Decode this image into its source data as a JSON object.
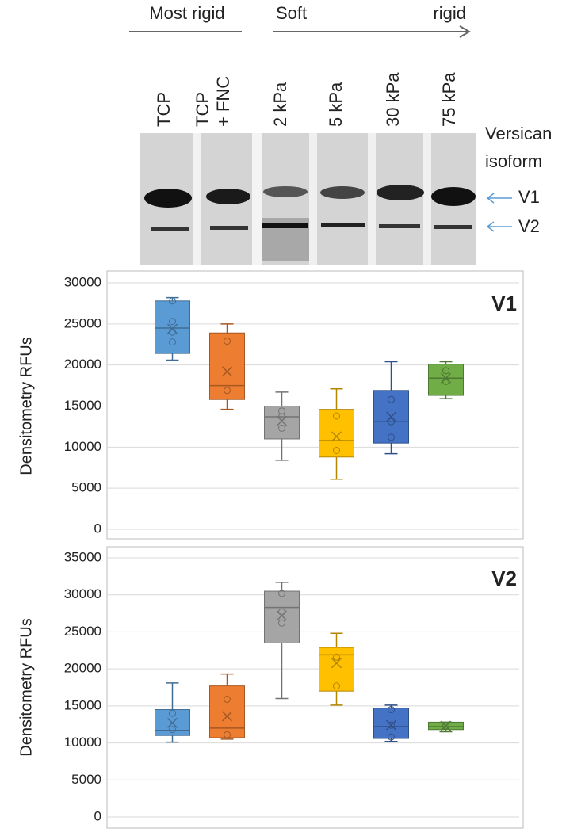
{
  "blot": {
    "header_left": "Most rigid",
    "header_soft": "Soft",
    "header_right": "rigid",
    "lanes": [
      [
        "TCP"
      ],
      [
        "TCP",
        "+ FNC"
      ],
      [
        "2 kPa"
      ],
      [
        "5 kPa"
      ],
      [
        "30 kPa"
      ],
      [
        "75 kPa"
      ]
    ],
    "isoform_label": [
      "Versican",
      "isoform"
    ],
    "bands": [
      "V1",
      "V2"
    ]
  },
  "chart_data": [
    {
      "type": "box",
      "label": "V1",
      "ylabel": "Densitometry RFUs",
      "ylim": [
        0,
        30000
      ],
      "yticks": [
        0,
        5000,
        10000,
        15000,
        20000,
        25000,
        30000
      ],
      "grid": true,
      "boxes": [
        {
          "color": "#5b9bd5",
          "min": 20600,
          "q1": 21400,
          "median": 24500,
          "q3": 27800,
          "max": 28200,
          "mean": 24400,
          "points": [
            27800,
            25300,
            24000,
            22800
          ]
        },
        {
          "color": "#ed7d31",
          "min": 14600,
          "q1": 15800,
          "median": 17500,
          "q3": 23900,
          "max": 25000,
          "mean": 19200,
          "points": [
            22900,
            16900
          ]
        },
        {
          "color": "#a5a5a5",
          "min": 8400,
          "q1": 11000,
          "median": 13700,
          "q3": 15000,
          "max": 16700,
          "mean": 13200,
          "points": [
            14400,
            13700,
            12300
          ]
        },
        {
          "color": "#ffc000",
          "min": 6100,
          "q1": 8800,
          "median": 10800,
          "q3": 14600,
          "max": 17100,
          "mean": 11300,
          "points": [
            13800,
            9600
          ]
        },
        {
          "color": "#4472c4",
          "min": 9200,
          "q1": 10500,
          "median": 13100,
          "q3": 16900,
          "max": 20400,
          "mean": 13700,
          "points": [
            15800,
            13100,
            11200
          ]
        },
        {
          "color": "#70ad47",
          "min": 15900,
          "q1": 16300,
          "median": 18400,
          "q3": 20100,
          "max": 20400,
          "mean": 18400,
          "points": [
            19300,
            18000
          ]
        }
      ]
    },
    {
      "type": "box",
      "label": "V2",
      "ylabel": "Densitometry RFUs",
      "ylim": [
        0,
        35000
      ],
      "yticks": [
        0,
        5000,
        10000,
        15000,
        20000,
        25000,
        30000,
        35000
      ],
      "grid": true,
      "boxes": [
        {
          "color": "#5b9bd5",
          "min": 10100,
          "q1": 11000,
          "median": 11700,
          "q3": 14500,
          "max": 18100,
          "mean": 12700,
          "points": [
            14000,
            11800
          ]
        },
        {
          "color": "#ed7d31",
          "min": 10500,
          "q1": 10700,
          "median": 12000,
          "q3": 17700,
          "max": 19300,
          "mean": 13600,
          "points": [
            15900,
            11100
          ]
        },
        {
          "color": "#a5a5a5",
          "min": 16000,
          "q1": 23500,
          "median": 28300,
          "q3": 30500,
          "max": 31700,
          "mean": 27200,
          "points": [
            30200,
            27700,
            26200
          ]
        },
        {
          "color": "#ffc000",
          "min": 15100,
          "q1": 17000,
          "median": 21900,
          "q3": 22900,
          "max": 24800,
          "mean": 20800,
          "points": [
            21600,
            17700
          ]
        },
        {
          "color": "#4472c4",
          "min": 10200,
          "q1": 10600,
          "median": 12200,
          "q3": 14700,
          "max": 15100,
          "mean": 12400,
          "points": [
            14500,
            12400,
            10800
          ]
        },
        {
          "color": "#70ad47",
          "min": 11500,
          "q1": 11800,
          "median": 12200,
          "q3": 12800,
          "max": 12800,
          "mean": 12300,
          "points": [
            12300
          ]
        }
      ]
    }
  ]
}
